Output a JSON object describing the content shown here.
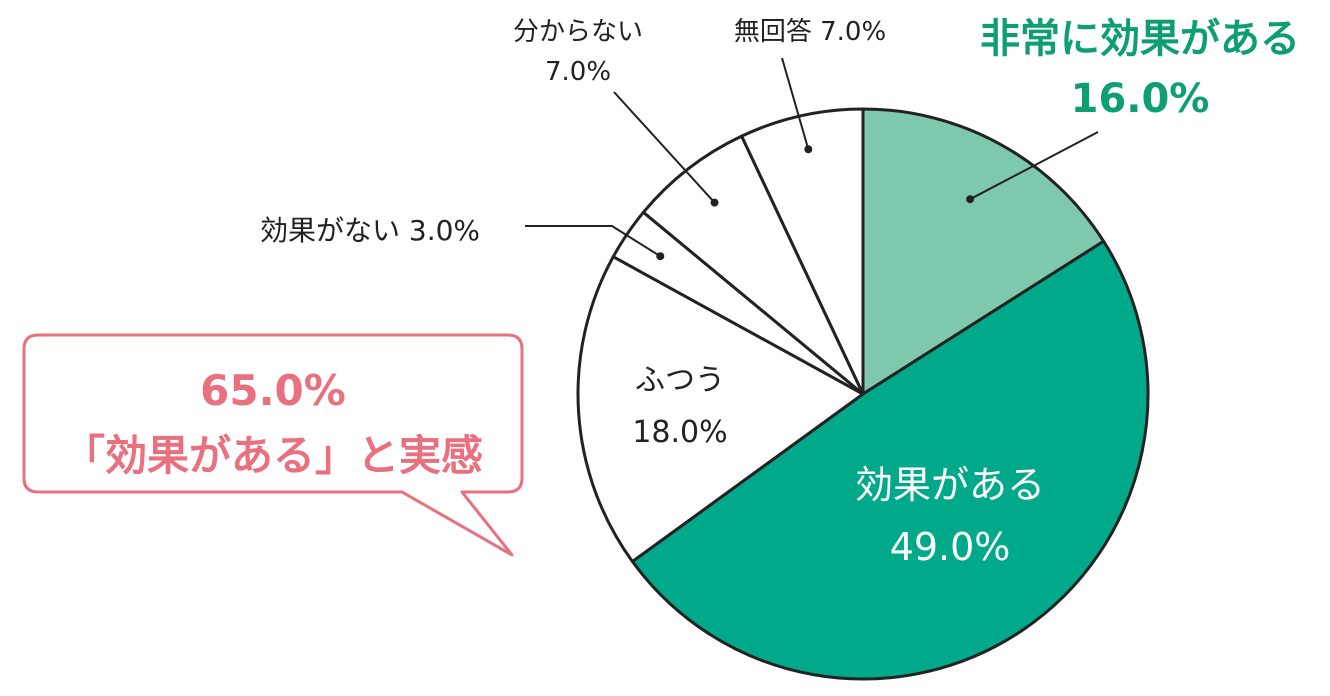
{
  "chart_data": {
    "type": "pie",
    "slices": [
      {
        "name": "非常に効果がある",
        "value": 16.0,
        "value_label": "16.0%",
        "color": "#7ec8ad"
      },
      {
        "name": "効果がある",
        "value": 49.0,
        "value_label": "49.0%",
        "color": "#00a98a"
      },
      {
        "name": "ふつう",
        "value": 18.0,
        "value_label": "18.0%",
        "color": "#ffffff"
      },
      {
        "name": "効果がない",
        "value": 3.0,
        "value_label": "3.0%",
        "color": "#ffffff"
      },
      {
        "name": "分からない",
        "value": 7.0,
        "value_label": "7.0%",
        "color": "#ffffff"
      },
      {
        "name": "無回答",
        "value": 7.0,
        "value_label": "7.0%",
        "color": "#ffffff"
      }
    ],
    "start": "12 o'clock, clockwise"
  },
  "callout": {
    "line1": "65.0%",
    "line2": "「効果がある」と実感",
    "color": "#e9707f"
  },
  "colors": {
    "outline": "#222222",
    "green_label": "#0e9e74"
  }
}
